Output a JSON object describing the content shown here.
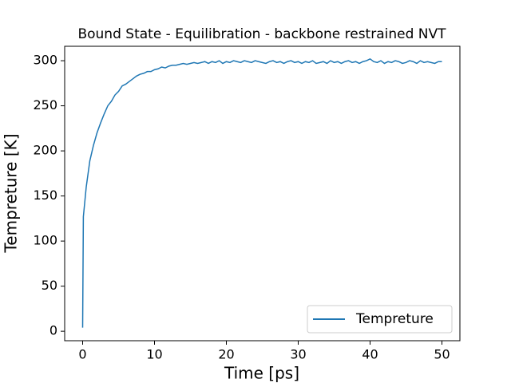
{
  "chart_data": {
    "type": "line",
    "title": "Bound State - Equilibration - backbone restrained NVT",
    "x_label": "Time [ps]",
    "y_label": "Tempreture [K]",
    "x": [
      0,
      0.1,
      0.5,
      1,
      1.5,
      2,
      2.5,
      3,
      3.5,
      4,
      4.5,
      5,
      5.5,
      6,
      6.5,
      7,
      7.5,
      8,
      8.5,
      9,
      9.5,
      10,
      10.5,
      11,
      11.5,
      12,
      12.5,
      13,
      13.5,
      14,
      14.5,
      15,
      15.5,
      16,
      16.5,
      17,
      17.5,
      18,
      18.5,
      19,
      19.5,
      20,
      20.5,
      21,
      21.5,
      22,
      22.5,
      23,
      23.5,
      24,
      24.5,
      25,
      25.5,
      26,
      26.5,
      27,
      27.5,
      28,
      28.5,
      29,
      29.5,
      30,
      30.5,
      31,
      31.5,
      32,
      32.5,
      33,
      33.5,
      34,
      34.5,
      35,
      35.5,
      36,
      36.5,
      37,
      37.5,
      38,
      38.5,
      39,
      39.5,
      40,
      40.5,
      41,
      41.5,
      42,
      42.5,
      43,
      43.5,
      44,
      44.5,
      45,
      45.5,
      46,
      46.5,
      47,
      47.5,
      48,
      48.5,
      49,
      49.5,
      50
    ],
    "series": [
      {
        "name": "Tempreture",
        "color": "#1f77b4",
        "values": [
          4,
          127,
          160,
          189,
          206,
          220,
          231,
          241,
          250,
          255,
          262,
          266,
          272,
          274,
          277,
          280,
          283,
          285,
          286,
          288,
          288,
          290,
          291,
          293,
          292,
          294,
          295,
          295,
          296,
          297,
          296,
          297,
          298,
          297,
          298,
          299,
          297,
          299,
          298,
          300,
          297,
          299,
          298,
          300,
          299,
          298,
          300,
          299,
          298,
          300,
          299,
          298,
          297,
          299,
          300,
          298,
          299,
          297,
          299,
          300,
          298,
          299,
          297,
          299,
          298,
          300,
          297,
          298,
          299,
          297,
          300,
          298,
          299,
          297,
          299,
          300,
          298,
          299,
          297,
          299,
          300,
          302,
          299,
          298,
          300,
          297,
          299,
          298,
          300,
          299,
          297,
          298,
          300,
          299,
          297,
          300,
          298,
          299,
          298,
          297,
          299,
          299
        ]
      }
    ],
    "xlim": [
      -2.5,
      52.5
    ],
    "xticks": [
      0,
      10,
      20,
      30,
      40,
      50
    ],
    "ylim": [
      -10.5,
      316
    ],
    "yticks": [
      0,
      50,
      100,
      150,
      200,
      250,
      300
    ],
    "legend": "lower right",
    "grid": false
  }
}
